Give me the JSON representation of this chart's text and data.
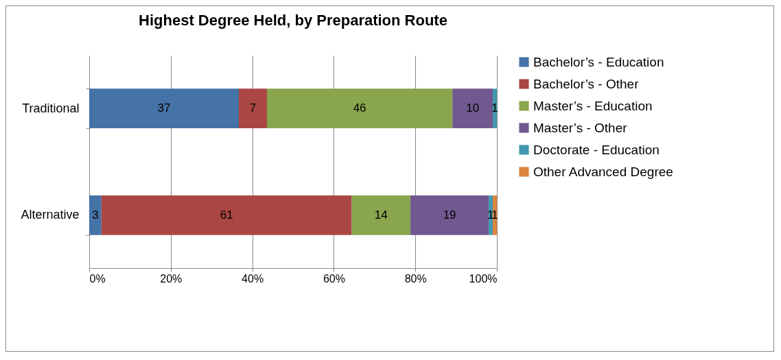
{
  "chart_data": {
    "type": "bar",
    "orientation": "horizontal",
    "stacked": true,
    "title": "Highest Degree Held, by Preparation Route",
    "categories": [
      "Traditional",
      "Alternative"
    ],
    "series": [
      {
        "name": "Bachelor’s - Education",
        "color": "#4572a7",
        "values": [
          36.7,
          3.0
        ],
        "value_labels": [
          "37",
          "3"
        ]
      },
      {
        "name": "Bachelor’s - Other",
        "color": "#aa4643",
        "values": [
          6.9,
          61.4
        ],
        "value_labels": [
          "7",
          "61"
        ]
      },
      {
        "name": "Master’s - Education",
        "color": "#89a54e",
        "values": [
          45.5,
          14.4
        ],
        "value_labels": [
          "46",
          "14"
        ]
      },
      {
        "name": "Master’s - Other",
        "color": "#71588f",
        "values": [
          9.9,
          19.2
        ],
        "value_labels": [
          "10",
          "19"
        ]
      },
      {
        "name": "Doctorate - Education",
        "color": "#4198af",
        "values": [
          1.0,
          1.0
        ],
        "value_labels": [
          "1",
          "1"
        ]
      },
      {
        "name": "Other Advanced Degree",
        "color": "#db843d",
        "values": [
          0,
          1.0
        ],
        "value_labels": [
          null,
          "1"
        ]
      }
    ],
    "xlim": [
      0,
      100
    ],
    "xticks": [
      {
        "value": 0,
        "label": "0%"
      },
      {
        "value": 20,
        "label": "20%"
      },
      {
        "value": 40,
        "label": "40%"
      },
      {
        "value": 60,
        "label": "60%"
      },
      {
        "value": 80,
        "label": "80%"
      },
      {
        "value": 100,
        "label": "100%"
      }
    ],
    "grid": "x",
    "legend": "right"
  }
}
